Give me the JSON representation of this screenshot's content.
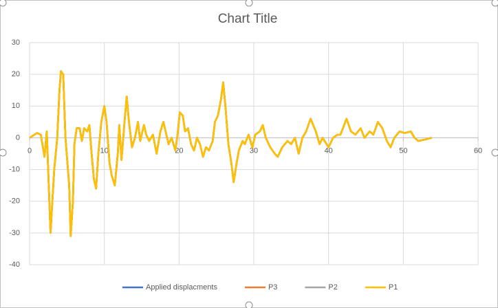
{
  "chart_data": {
    "type": "line",
    "title": "Chart Title",
    "x": [
      0,
      1,
      1.5,
      2,
      2.3,
      2.8,
      3.3,
      3.7,
      4,
      4.2,
      4.5,
      4.8,
      5.3,
      5.5,
      5.8,
      6,
      6.3,
      6.7,
      7,
      7.3,
      7.7,
      8,
      8.3,
      8.6,
      8.9,
      9.2,
      9.6,
      10,
      10.3,
      10.7,
      11,
      11.4,
      11.8,
      12,
      12.3,
      12.7,
      13,
      13.3,
      13.7,
      14.1,
      14.5,
      14.8,
      15.3,
      15.6,
      16,
      16.5,
      17,
      17.5,
      17.9,
      18.2,
      18.6,
      19,
      19.5,
      19.8,
      20.1,
      20.5,
      20.8,
      21.2,
      21.6,
      22,
      22.4,
      22.8,
      23.2,
      23.6,
      24,
      24.5,
      24.8,
      25.2,
      25.6,
      25.9,
      26.2,
      26.6,
      27,
      27.3,
      27.7,
      28,
      28.5,
      28.8,
      29.3,
      29.8,
      30.2,
      30.8,
      31.2,
      31.6,
      32.2,
      32.8,
      33.2,
      33.8,
      34.5,
      35,
      35.5,
      36,
      36.5,
      37,
      37.6,
      38.3,
      38.8,
      39.2,
      40,
      40.6,
      41.2,
      41.6,
      42.4,
      43,
      43.6,
      44.3,
      44.8,
      45.5,
      46,
      46.6,
      47.2,
      47.8,
      48.3,
      48.8,
      49.5,
      50.2,
      51,
      51.5,
      52,
      53,
      53.8
    ],
    "series": [
      {
        "name": "Applied displacments",
        "color": "#4472c4",
        "values": [
          0,
          1.5,
          1,
          -6,
          2,
          -30,
          -10,
          0,
          15,
          21,
          20,
          0,
          -15,
          -31,
          -20,
          -2,
          3,
          3,
          -1,
          3,
          2,
          4,
          -5,
          -13,
          -16,
          -5,
          5,
          10,
          5,
          -8,
          -12,
          -15,
          -5,
          4,
          -7,
          5,
          13,
          5,
          -3,
          0,
          5,
          -1,
          4,
          1,
          -1,
          1,
          -5,
          2,
          5,
          2,
          -2,
          0,
          -4,
          1,
          8,
          7,
          2,
          3,
          -2,
          -4,
          0,
          -2,
          -6,
          -3,
          -4,
          -1,
          5,
          7,
          12,
          17.5,
          10,
          -2,
          -8,
          -14,
          -8,
          -4,
          -1,
          -2,
          1,
          -3,
          1,
          2,
          4,
          0,
          -3,
          -5,
          -6,
          -3,
          -1,
          -2,
          0,
          -5,
          0,
          2,
          6,
          2,
          -2,
          0,
          -3,
          0,
          1,
          1,
          6,
          2,
          1,
          3,
          0,
          2,
          1,
          5,
          3,
          -1,
          -3,
          0,
          2,
          1.5,
          2,
          0,
          -1,
          -0.5,
          0
        ]
      },
      {
        "name": "P3",
        "color": "#ed7d31",
        "values": [
          0,
          1.5,
          1,
          -6,
          2,
          -30,
          -10,
          0,
          15,
          21,
          20,
          0,
          -15,
          -31,
          -20,
          -2,
          3,
          3,
          -1,
          3,
          2,
          4,
          -5,
          -13,
          -16,
          -5,
          5,
          10,
          5,
          -8,
          -12,
          -15,
          -5,
          4,
          -7,
          5,
          13,
          5,
          -3,
          0,
          5,
          -1,
          4,
          1,
          -1,
          1,
          -5,
          2,
          5,
          2,
          -2,
          0,
          -4,
          1,
          8,
          7,
          2,
          3,
          -2,
          -4,
          0,
          -2,
          -6,
          -3,
          -4,
          -1,
          5,
          7,
          12,
          17.5,
          10,
          -2,
          -8,
          -14,
          -8,
          -4,
          -1,
          -2,
          1,
          -3,
          1,
          2,
          4,
          0,
          -3,
          -5,
          -6,
          -3,
          -1,
          -2,
          0,
          -5,
          0,
          2,
          6,
          2,
          -2,
          0,
          -3,
          0,
          1,
          1,
          6,
          2,
          1,
          3,
          0,
          2,
          1,
          5,
          3,
          -1,
          -3,
          0,
          2,
          1.5,
          2,
          0,
          -1,
          -0.5,
          0
        ]
      },
      {
        "name": "P2",
        "color": "#a5a5a5",
        "values": [
          0,
          1.5,
          1,
          -6,
          2,
          -30,
          -10,
          0,
          15,
          21,
          20,
          0,
          -15,
          -31,
          -20,
          -2,
          3,
          3,
          -1,
          3,
          2,
          4,
          -5,
          -13,
          -16,
          -5,
          5,
          10,
          5,
          -8,
          -12,
          -15,
          -5,
          4,
          -7,
          5,
          13,
          5,
          -3,
          0,
          5,
          -1,
          4,
          1,
          -1,
          1,
          -5,
          2,
          5,
          2,
          -2,
          0,
          -4,
          1,
          8,
          7,
          2,
          3,
          -2,
          -4,
          0,
          -2,
          -6,
          -3,
          -4,
          -1,
          5,
          7,
          12,
          17.5,
          10,
          -2,
          -8,
          -14,
          -8,
          -4,
          -1,
          -2,
          1,
          -3,
          1,
          2,
          4,
          0,
          -3,
          -5,
          -6,
          -3,
          -1,
          -2,
          0,
          -5,
          0,
          2,
          6,
          2,
          -2,
          0,
          -3,
          0,
          1,
          1,
          6,
          2,
          1,
          3,
          0,
          2,
          1,
          5,
          3,
          -1,
          -3,
          0,
          2,
          1.5,
          2,
          0,
          -1,
          -0.5,
          0
        ]
      },
      {
        "name": "P1",
        "color": "#ffc000",
        "values": [
          0,
          1.5,
          1,
          -6,
          2,
          -30,
          -10,
          0,
          15,
          21,
          20,
          0,
          -15,
          -31,
          -20,
          -2,
          3,
          3,
          -1,
          3,
          2,
          4,
          -5,
          -13,
          -16,
          -5,
          5,
          10,
          5,
          -8,
          -12,
          -15,
          -5,
          4,
          -7,
          5,
          13,
          5,
          -3,
          0,
          5,
          -1,
          4,
          1,
          -1,
          1,
          -5,
          2,
          5,
          2,
          -2,
          0,
          -4,
          1,
          8,
          7,
          2,
          3,
          -2,
          -4,
          0,
          -2,
          -6,
          -3,
          -4,
          -1,
          5,
          7,
          12,
          17.5,
          10,
          -2,
          -8,
          -14,
          -8,
          -4,
          -1,
          -2,
          1,
          -3,
          1,
          2,
          4,
          0,
          -3,
          -5,
          -6,
          -3,
          -1,
          -2,
          0,
          -5,
          0,
          2,
          6,
          2,
          -2,
          0,
          -3,
          0,
          1,
          1,
          6,
          2,
          1,
          3,
          0,
          2,
          1,
          5,
          3,
          -1,
          -3,
          0,
          2,
          1.5,
          2,
          0,
          -1,
          -0.5,
          0
        ]
      }
    ],
    "xlim": [
      0,
      60
    ],
    "xticks": [
      0,
      10,
      20,
      30,
      40,
      50,
      60
    ],
    "ylim": [
      -40,
      30
    ],
    "yticks": [
      -40,
      -30,
      -20,
      -10,
      0,
      10,
      20,
      30
    ],
    "grid": true,
    "legend": "bottom"
  }
}
